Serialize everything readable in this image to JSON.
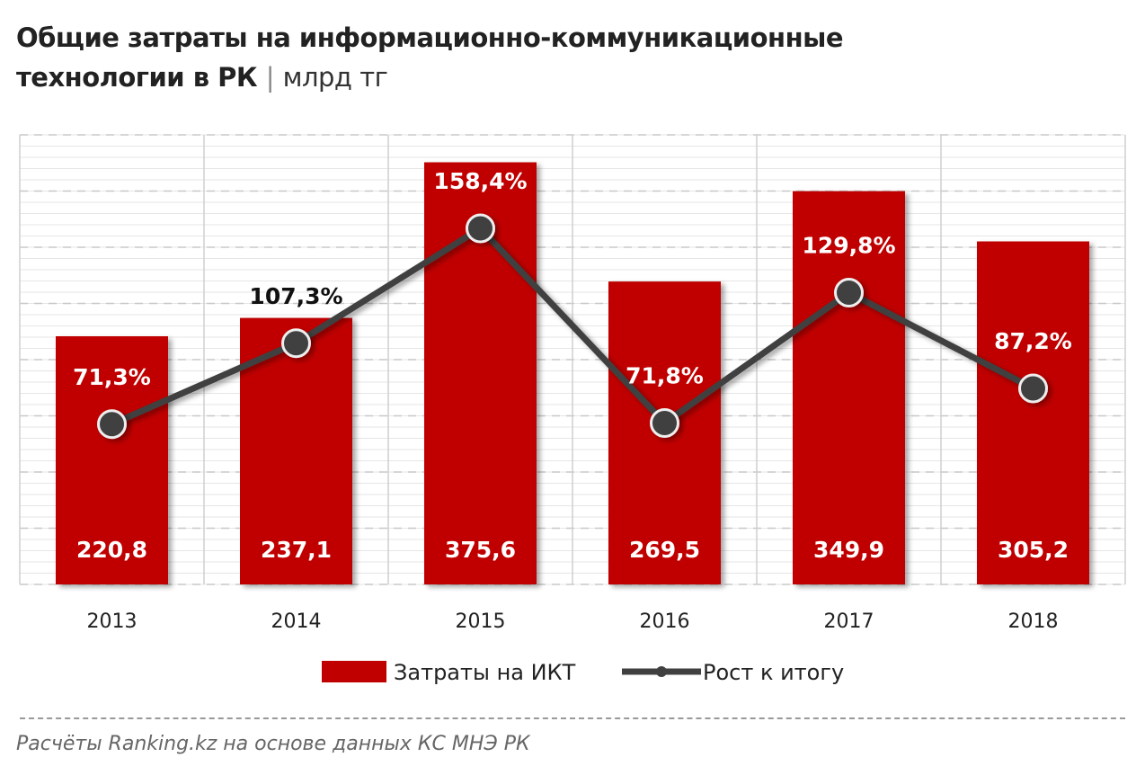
{
  "title": {
    "main_line1": "Общие затраты на информационно-коммуникационные",
    "main_line2": "технологии в РК",
    "separator": "|",
    "unit": "млрд тг"
  },
  "source": "Расчёты Ranking.kz на основе данных КС МНЭ РК",
  "chart_data": {
    "type": "bar",
    "categories": [
      "2013",
      "2014",
      "2015",
      "2016",
      "2017",
      "2018"
    ],
    "series": [
      {
        "name": "Затраты на ИКТ",
        "type": "bar",
        "axis": "primary",
        "values": [
          220.8,
          237.1,
          375.6,
          269.5,
          349.9,
          305.2
        ],
        "labels": [
          "220,8",
          "237,1",
          "375,6",
          "269,5",
          "349,9",
          "305,2"
        ],
        "color": "#C00000"
      },
      {
        "name": "Рост к итогу",
        "type": "line",
        "axis": "secondary",
        "values": [
          71.3,
          107.3,
          158.4,
          71.8,
          129.8,
          87.2
        ],
        "labels": [
          "71,3%",
          "107,3%",
          "158,4%",
          "71,8%",
          "129,8%",
          "87,2%"
        ],
        "color": "#404040"
      }
    ],
    "ylim": [
      0,
      400
    ],
    "y2lim": [
      0,
      200
    ],
    "grid": true,
    "legend": "bottom"
  }
}
